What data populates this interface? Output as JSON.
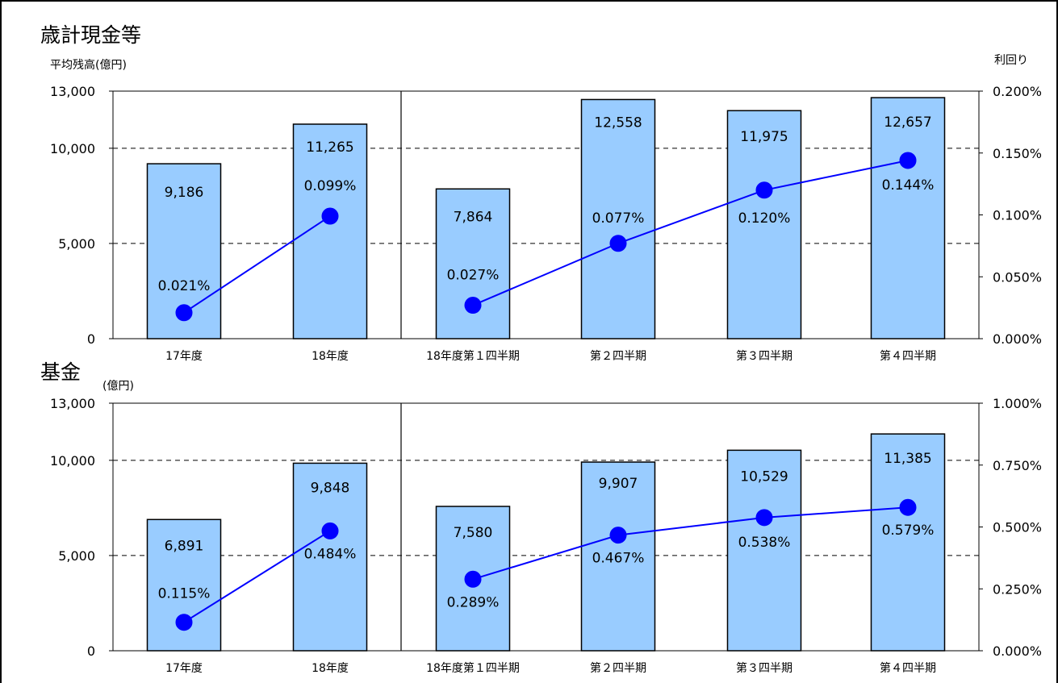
{
  "chart_data": [
    {
      "type": "bar",
      "title": "歳計現金等",
      "ylabel": "平均残高(億円)",
      "y2label": "利回り",
      "categories": [
        "17年度",
        "18年度",
        "18年度第１四半期",
        "第２四半期",
        "第３四半期",
        "第４四半期"
      ],
      "ylim": [
        0,
        13000
      ],
      "y_ticks": [
        0,
        5000,
        10000,
        13000
      ],
      "y_tick_labels": [
        "0",
        "5,000",
        "10,000",
        "13,000"
      ],
      "y2lim": [
        0,
        0.2
      ],
      "y2_ticks": [
        0,
        0.05,
        0.1,
        0.15,
        0.2
      ],
      "y2_tick_labels": [
        "0.000%",
        "0.050%",
        "0.100%",
        "0.150%",
        "0.200%"
      ],
      "gridlines": [
        5000,
        10000
      ],
      "series": [
        {
          "type": "bar",
          "axis": "left",
          "color": "#99ccff",
          "values": [
            9186,
            11265,
            7864,
            12558,
            11975,
            12657
          ],
          "labels": [
            "9,186",
            "11,265",
            "7,864",
            "12,558",
            "11,975",
            "12,657"
          ]
        },
        {
          "type": "line",
          "axis": "right",
          "color": "#0000ff",
          "values": [
            0.021,
            0.099,
            0.027,
            0.077,
            0.12,
            0.144
          ],
          "labels": [
            "0.021%",
            "0.099%",
            "0.027%",
            "0.077%",
            "0.120%",
            "0.144%"
          ]
        }
      ]
    },
    {
      "type": "bar",
      "title": "基金",
      "ylabel": "(億円)",
      "categories": [
        "17年度",
        "18年度",
        "18年度第１四半期",
        "第２四半期",
        "第３四半期",
        "第４四半期"
      ],
      "ylim": [
        0,
        13000
      ],
      "y_ticks": [
        0,
        5000,
        10000,
        13000
      ],
      "y_tick_labels": [
        "0",
        "5,000",
        "10,000",
        "13,000"
      ],
      "y2lim": [
        0,
        1.0
      ],
      "y2_ticks": [
        0,
        0.25,
        0.5,
        0.75,
        1.0
      ],
      "y2_tick_labels": [
        "0.000%",
        "0.250%",
        "0.500%",
        "0.750%",
        "1.000%"
      ],
      "gridlines": [
        5000,
        10000
      ],
      "series": [
        {
          "type": "bar",
          "axis": "left",
          "color": "#99ccff",
          "values": [
            6891,
            9848,
            7580,
            9907,
            10529,
            11385
          ],
          "labels": [
            "6,891",
            "9,848",
            "7,580",
            "9,907",
            "10,529",
            "11,385"
          ]
        },
        {
          "type": "line",
          "axis": "right",
          "color": "#0000ff",
          "values": [
            0.115,
            0.484,
            0.289,
            0.467,
            0.538,
            0.579
          ],
          "labels": [
            "0.115%",
            "0.484%",
            "0.289%",
            "0.467%",
            "0.538%",
            "0.579%"
          ]
        }
      ]
    }
  ]
}
